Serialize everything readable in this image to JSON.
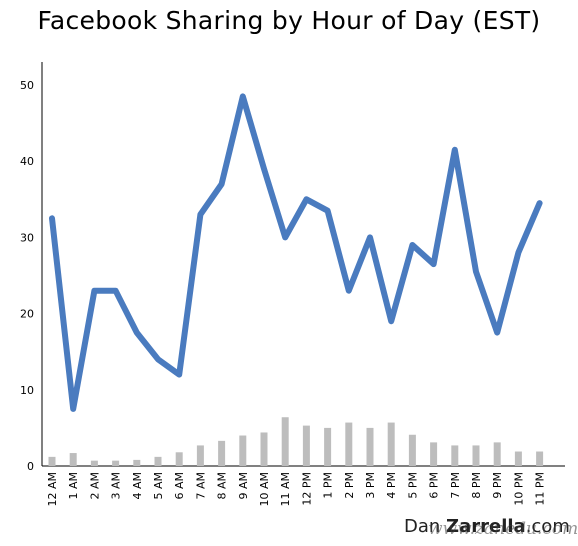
{
  "chart_data": {
    "type": "bar+line",
    "title": "Facebook Sharing by Hour of Day (EST)",
    "xlabel": "",
    "ylabel": "",
    "ylim": [
      0,
      50
    ],
    "yticks": [
      0,
      10,
      20,
      30,
      40,
      50
    ],
    "grid": false,
    "categories": [
      "12 AM",
      "1 AM",
      "2 AM",
      "3 AM",
      "4 AM",
      "5 AM",
      "6 AM",
      "7 AM",
      "8 AM",
      "9 AM",
      "10 AM",
      "11 AM",
      "12 PM",
      "1 PM",
      "2 PM",
      "3 PM",
      "4 PM",
      "5 PM",
      "6 PM",
      "7 PM",
      "8 PM",
      "9 PM",
      "10 PM",
      "11 PM"
    ],
    "series": [
      {
        "type": "line",
        "color": "#4a7bbf",
        "values": [
          32.5,
          7.5,
          23,
          23,
          17.5,
          14,
          12,
          33,
          37,
          48.5,
          39,
          30,
          35,
          33.5,
          23,
          30,
          19,
          29,
          26.5,
          41.5,
          25.5,
          17.5,
          28,
          34.5
        ]
      },
      {
        "type": "bar",
        "color": "#bdbdbd",
        "values": [
          1.2,
          1.7,
          0.7,
          0.7,
          0.8,
          1.2,
          1.8,
          2.7,
          3.3,
          4.0,
          4.4,
          6.4,
          5.3,
          5.0,
          5.7,
          5.0,
          5.7,
          4.1,
          3.1,
          2.7,
          2.7,
          3.1,
          1.9,
          1.9
        ]
      }
    ]
  },
  "credit": {
    "prefix": "Dan ",
    "bold": "Zarrella",
    "suffix": ".com"
  },
  "watermark": "www.zanedu.com"
}
